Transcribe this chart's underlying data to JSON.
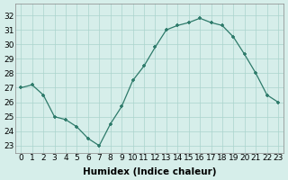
{
  "x": [
    0,
    1,
    2,
    3,
    4,
    5,
    6,
    7,
    8,
    9,
    10,
    11,
    12,
    13,
    14,
    15,
    16,
    17,
    18,
    19,
    20,
    21,
    22,
    23
  ],
  "y": [
    27,
    27.2,
    26.5,
    25,
    24.8,
    24.3,
    23.5,
    23,
    24.5,
    25.7,
    27.5,
    28.5,
    29.8,
    31.0,
    31.3,
    31.5,
    31.8,
    31.5,
    31.3,
    30.5,
    29.3,
    28.0,
    26.5,
    26.0
  ],
  "line_color": "#2d7a6a",
  "marker_color": "#2d7a6a",
  "bg_color": "#d6eeea",
  "grid_color": "#aad4cc",
  "xlabel": "Humidex (Indice chaleur)",
  "ylim": [
    22.5,
    32.8
  ],
  "xlim": [
    -0.5,
    23.5
  ],
  "yticks": [
    23,
    24,
    25,
    26,
    27,
    28,
    29,
    30,
    31,
    32
  ],
  "xticks": [
    0,
    1,
    2,
    3,
    4,
    5,
    6,
    7,
    8,
    9,
    10,
    11,
    12,
    13,
    14,
    15,
    16,
    17,
    18,
    19,
    20,
    21,
    22,
    23
  ],
  "tick_label_fontsize": 6.5,
  "xlabel_fontsize": 7.5
}
